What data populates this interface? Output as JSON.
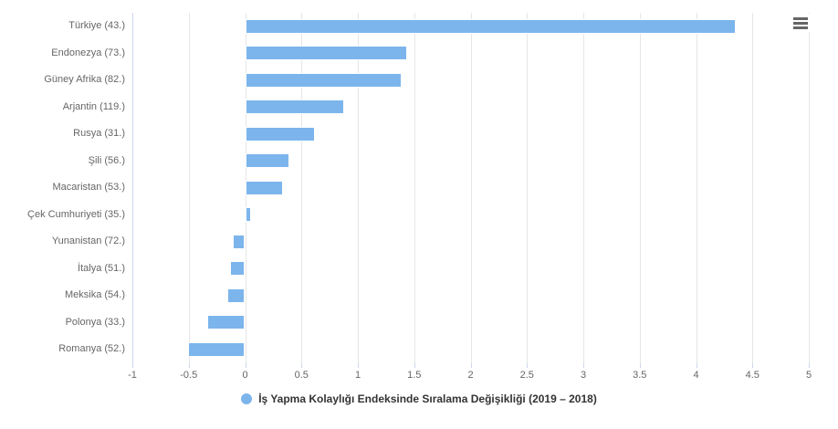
{
  "chart_data": {
    "type": "bar",
    "orientation": "horizontal",
    "title": "",
    "xlabel": "",
    "ylabel": "",
    "categories": [
      "Türkiye (43.)",
      "Endonezya (73.)",
      "Güney Afrika (82.)",
      "Arjantin (119.)",
      "Rusya (31.)",
      "Şili (56.)",
      "Macaristan (53.)",
      "Çek Cumhuriyeti (35.)",
      "Yunanistan (72.)",
      "İtalya (51.)",
      "Meksika (54.)",
      "Polonya (33.)",
      "Romanya (52.)"
    ],
    "series": [
      {
        "name": "İş Yapma Kolaylığı Endeksinde Sıralama Değişikliği (2019 – 2018)",
        "values": [
          4.35,
          1.44,
          1.39,
          0.88,
          0.62,
          0.39,
          0.34,
          0.05,
          -0.11,
          -0.13,
          -0.16,
          -0.34,
          -0.51
        ]
      }
    ],
    "xlim": [
      -1,
      5
    ],
    "x_tick_values": [
      -1,
      -0.5,
      0,
      0.5,
      1,
      1.5,
      2,
      2.5,
      3,
      3.5,
      4,
      4.5,
      5
    ],
    "x_tick_labels": [
      "-1",
      "-0.5",
      "0",
      "0.5",
      "1",
      "1.5",
      "2",
      "2.5",
      "3",
      "3.5",
      "4",
      "4.5",
      "5"
    ],
    "grid": true,
    "legend_position": "bottom-center",
    "colors": {
      "bar": "#7cb5ec",
      "gridline": "#e6e6e6",
      "axis_line": "#ccd6eb",
      "axis_label": "#666666",
      "legend_text": "#333333"
    }
  },
  "legend": {
    "label": "İş Yapma Kolaylığı Endeksinde Sıralama Değişikliği (2019 – 2018)"
  },
  "toolbar": {
    "context_menu_icon": "hamburger-menu-icon"
  }
}
